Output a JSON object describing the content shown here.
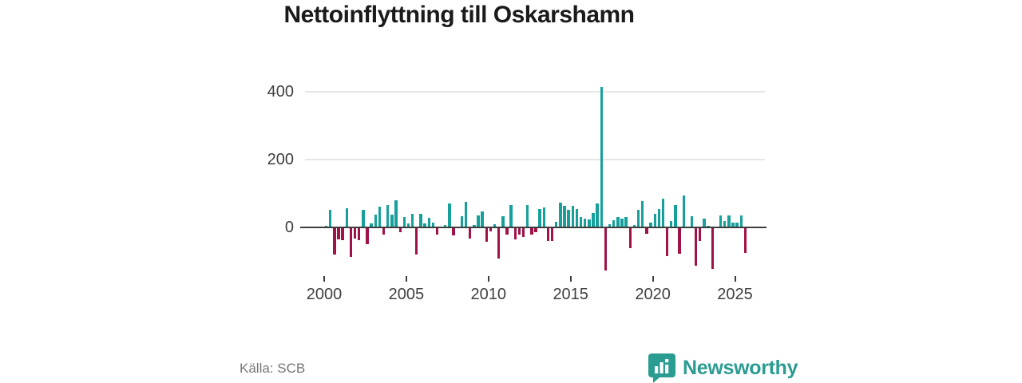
{
  "title": "Nettoinflyttning till Oskarshamn",
  "source": "Källa: SCB",
  "branding": {
    "name": "Newsworthy",
    "logo_icon": "bar-chart-speech-bubble"
  },
  "colors": {
    "positive_bar": "#16a09c",
    "negative_bar": "#a11246",
    "grid": "#e6e6e6",
    "zero_line": "#3d3d3d",
    "axis_text": "#3f3f3f",
    "title_text": "#1a1a1a",
    "source_text": "#767676",
    "brand": "#2b9c92"
  },
  "chart_data": {
    "type": "bar",
    "title": "Nettoinflyttning till Oskarshamn",
    "xlabel": "",
    "ylabel": "",
    "frequency": "quarterly",
    "start_period": "2000-Q1",
    "end_period": "2025-Q3",
    "x_ticks": [
      2000,
      2005,
      2010,
      2015,
      2020,
      2025
    ],
    "y_ticks": [
      0,
      200,
      400
    ],
    "ylim": [
      -150,
      440
    ],
    "grid": "horizontal",
    "legend": "none",
    "values": [
      5,
      52,
      -80,
      -35,
      -38,
      57,
      -88,
      -33,
      -38,
      51,
      -49,
      12,
      38,
      62,
      -21,
      67,
      38,
      81,
      -13,
      30,
      12,
      40,
      -80,
      40,
      12,
      28,
      13,
      -22,
      3,
      8,
      71,
      -24,
      3,
      32,
      75,
      -32,
      8,
      36,
      47,
      -43,
      -12,
      10,
      -91,
      32,
      -20,
      67,
      -36,
      -20,
      -29,
      67,
      -21,
      -15,
      54,
      58,
      -41,
      -39,
      17,
      72,
      63,
      51,
      63,
      55,
      31,
      27,
      24,
      43,
      70,
      415,
      -128,
      10,
      22,
      30,
      26,
      30,
      -61,
      6,
      52,
      78,
      -18,
      15,
      40,
      55,
      85,
      -85,
      20,
      65,
      -77,
      94,
      3,
      34,
      -112,
      -40,
      25,
      5,
      -122,
      3,
      35,
      20,
      35,
      15,
      15,
      35,
      -75
    ]
  }
}
